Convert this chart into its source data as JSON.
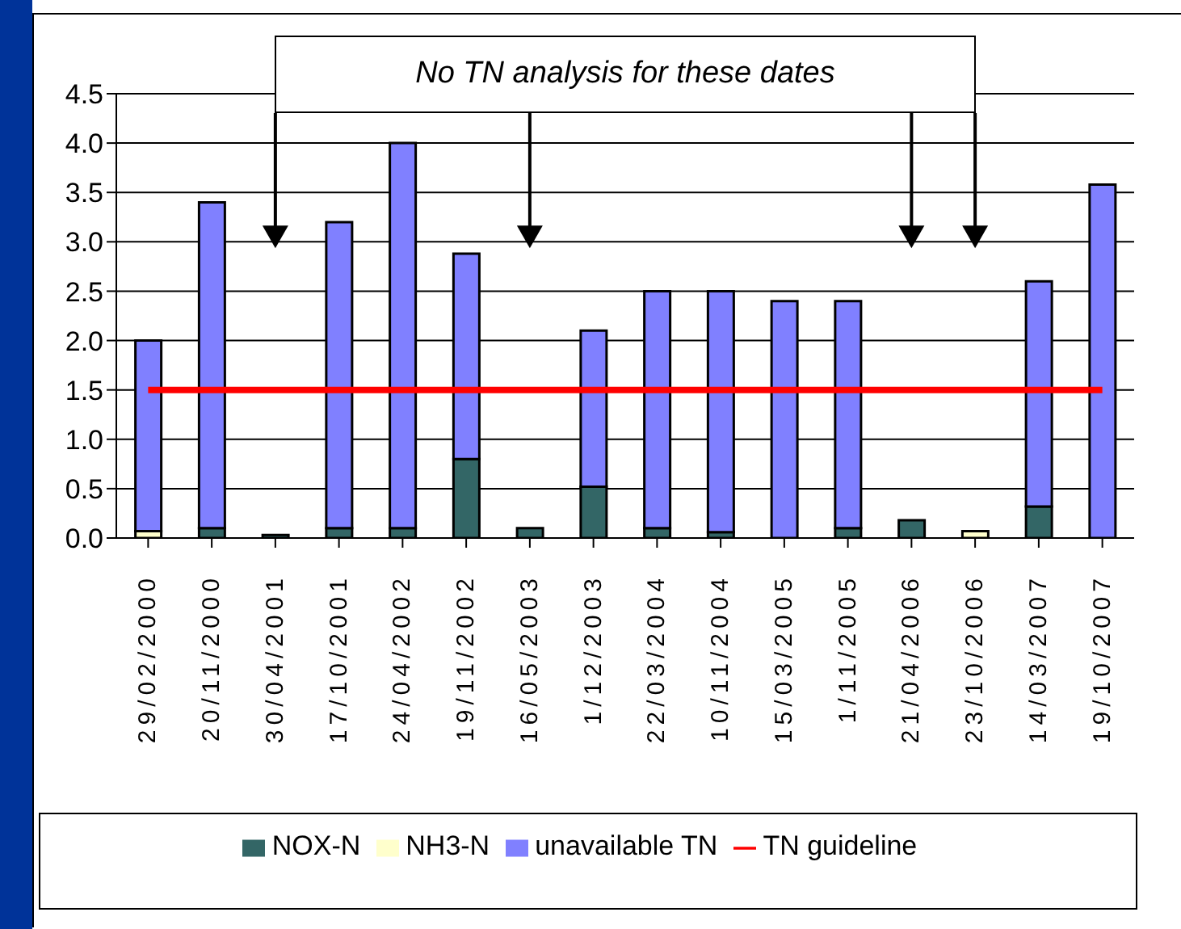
{
  "chart_data": {
    "type": "bar",
    "stacked": true,
    "categories": [
      "29/02/2000",
      "20/11/2000",
      "30/04/2001",
      "17/10/2001",
      "24/04/2002",
      "19/11/2002",
      "16/05/2003",
      "1/12/2003",
      "22/03/2004",
      "10/11/2004",
      "15/03/2005",
      "1/11/2005",
      "21/04/2006",
      "23/10/2006",
      "14/03/2007",
      "19/10/2007"
    ],
    "series": [
      {
        "name": "NOX-N",
        "color": "#336666",
        "values": [
          null,
          0.1,
          0.03,
          0.1,
          0.1,
          0.8,
          0.1,
          0.52,
          0.1,
          0.06,
          null,
          0.1,
          0.18,
          null,
          0.32,
          null
        ]
      },
      {
        "name": "NH3-N",
        "color": "#ffffcc",
        "values": [
          0.07,
          null,
          null,
          null,
          null,
          null,
          null,
          null,
          null,
          null,
          null,
          null,
          null,
          0.07,
          null,
          null
        ]
      },
      {
        "name": "unavailable TN",
        "color": "#8080ff",
        "values": [
          1.93,
          3.3,
          null,
          3.1,
          3.9,
          2.08,
          null,
          1.58,
          2.4,
          2.44,
          2.4,
          2.3,
          null,
          null,
          2.28,
          3.58
        ]
      },
      {
        "name": "TN guideline",
        "type": "line",
        "color": "#ff0000",
        "values": [
          1.5,
          1.5,
          1.5,
          1.5,
          1.5,
          1.5,
          1.5,
          1.5,
          1.5,
          1.5,
          1.5,
          1.5,
          1.5,
          1.5,
          1.5,
          1.5
        ]
      }
    ],
    "ylim": [
      0,
      4.5
    ],
    "yticks": [
      {
        "value": 0,
        "label": "0.0"
      },
      0.5,
      {
        "value": 1,
        "label": "1.0"
      },
      1.5,
      {
        "value": 2,
        "label": "2.0"
      },
      2.5,
      {
        "value": 3,
        "label": "3.0"
      },
      3.5,
      {
        "value": 4,
        "label": "4.0"
      },
      4.5
    ],
    "grid": "y",
    "legend": "bottom",
    "annotations": [
      "No TN analysis for these dates"
    ]
  }
}
